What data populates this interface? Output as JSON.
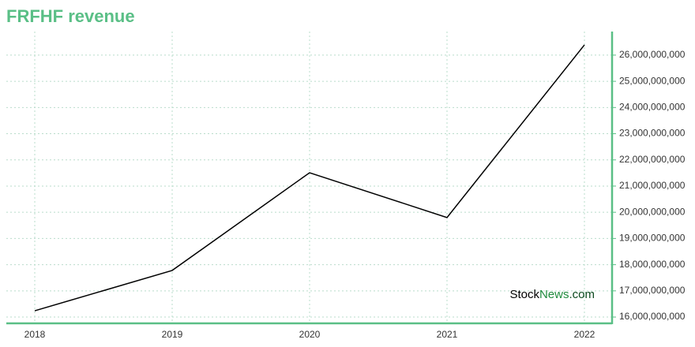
{
  "chart_data": {
    "type": "line",
    "title": "FRFHF revenue",
    "categories": [
      "2018",
      "2019",
      "2020",
      "2021",
      "2022"
    ],
    "series": [
      {
        "color": "#000000",
        "values": [
          16240000000,
          17780000000,
          21510000000,
          19800000000,
          26390000000
        ]
      }
    ],
    "ylim": [
      15760000000,
      26900000000
    ],
    "yticks": [
      {
        "value": 16000000000,
        "label": "16,000,000,000"
      },
      {
        "value": 17000000000,
        "label": "17,000,000,000"
      },
      {
        "value": 18000000000,
        "label": "18,000,000,000"
      },
      {
        "value": 19000000000,
        "label": "19,000,000,000"
      },
      {
        "value": 20000000000,
        "label": "20,000,000,000"
      },
      {
        "value": 21000000000,
        "label": "21,000,000,000"
      },
      {
        "value": 22000000000,
        "label": "22,000,000,000"
      },
      {
        "value": 23000000000,
        "label": "23,000,000,000"
      },
      {
        "value": 24000000000,
        "label": "24,000,000,000"
      },
      {
        "value": 25000000000,
        "label": "25,000,000,000"
      },
      {
        "value": 26000000000,
        "label": "26,000,000,000"
      }
    ],
    "grid": true,
    "watermark": [
      "Stock",
      "News",
      ".com"
    ]
  }
}
